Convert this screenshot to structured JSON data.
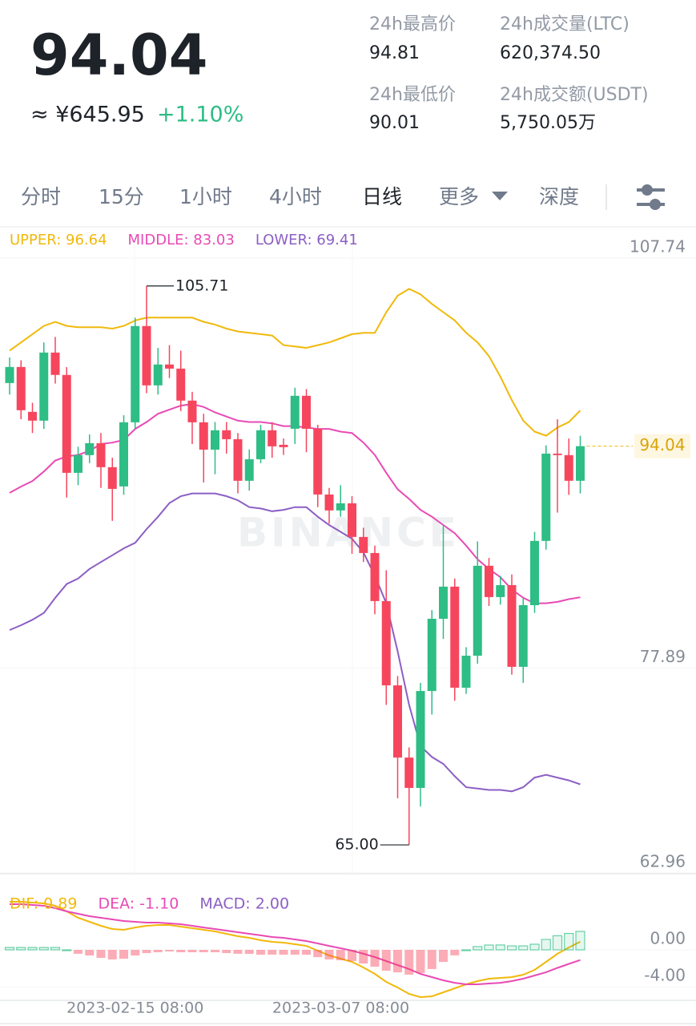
{
  "header": {
    "price": "94.04",
    "cny": "≈ ¥645.95",
    "change": "+1.10%",
    "stats": [
      {
        "label": "24h最高价",
        "value": "94.81"
      },
      {
        "label": "24h成交量(LTC)",
        "value": "620,374.50"
      },
      {
        "label": "24h最低价",
        "value": "90.01"
      },
      {
        "label": "24h成交额(USDT)",
        "value": "5,750.05万"
      }
    ]
  },
  "tabs": [
    "分时",
    "15分",
    "1小时",
    "4小时",
    "日线",
    "更多",
    "深度"
  ],
  "watermark": "BINANCE",
  "chart_data": [
    {
      "type": "candlestick",
      "up_color": "#2ebd85",
      "down_color": "#f6465d",
      "open": [
        98.64,
        99.81,
        96.54,
        95.9,
        100.86,
        99.23,
        92.1,
        93.39,
        94.26,
        92.51,
        91.11,
        95.78,
        102.79,
        98.47,
        99.99,
        99.69,
        97.36,
        95.78,
        93.79,
        95.2,
        94.55,
        91.52,
        93.09,
        95.2,
        94.14,
        95.31,
        97.71,
        95.31,
        90.52,
        89.36,
        89.88,
        87.43,
        86.26,
        82.76,
        76.62,
        71.36,
        69.15,
        76.21,
        81.47,
        83.81,
        76.45,
        78.78,
        85.33,
        83.05,
        83.92,
        77.97,
        82.46,
        87.14,
        93.5,
        93.39,
        91.52
      ],
      "high": [
        100.5,
        100.3,
        97.2,
        101.6,
        102.0,
        99.8,
        94.0,
        94.9,
        95.0,
        93.2,
        96.3,
        103.4,
        105.71,
        101.2,
        101.4,
        101.0,
        98.0,
        96.4,
        95.8,
        95.8,
        95.0,
        93.8,
        95.6,
        95.8,
        94.6,
        98.3,
        98.2,
        95.6,
        91.0,
        91.2,
        90.4,
        88.1,
        86.8,
        85.0,
        77.3,
        72.1,
        76.8,
        82.1,
        88.3,
        84.4,
        79.4,
        87.1,
        85.9,
        84.6,
        84.7,
        83.0,
        87.8,
        94.1,
        96.0,
        94.6,
        94.8
      ],
      "low": [
        97.8,
        96.0,
        95.0,
        95.3,
        98.6,
        90.3,
        91.2,
        92.8,
        91.0,
        88.6,
        90.5,
        95.3,
        97.9,
        97.8,
        99.0,
        96.6,
        94.2,
        91.4,
        92.0,
        93.5,
        90.6,
        90.8,
        92.8,
        93.2,
        93.4,
        94.2,
        93.6,
        89.6,
        88.4,
        88.9,
        86.2,
        85.6,
        81.8,
        75.2,
        68.4,
        65.0,
        67.8,
        74.5,
        80.0,
        75.5,
        76.0,
        78.2,
        82.4,
        82.5,
        77.4,
        76.8,
        81.9,
        86.5,
        89.2,
        90.5,
        90.6
      ],
      "close": [
        99.81,
        96.66,
        95.9,
        100.86,
        99.23,
        92.1,
        93.39,
        94.26,
        92.51,
        90.93,
        95.78,
        102.79,
        98.47,
        99.99,
        99.69,
        97.36,
        95.78,
        93.79,
        95.2,
        94.55,
        91.52,
        93.09,
        95.2,
        94.03,
        93.97,
        97.71,
        95.31,
        90.52,
        89.36,
        89.88,
        87.43,
        86.26,
        82.76,
        76.62,
        71.36,
        69.15,
        76.21,
        81.47,
        83.81,
        76.45,
        78.78,
        85.33,
        83.05,
        83.92,
        77.97,
        82.46,
        87.14,
        93.5,
        93.39,
        91.52,
        94.04
      ],
      "series": [
        {
          "name": "UPPER: 96.64",
          "color": "#f0b90b",
          "values": [
            101.0,
            101.6,
            102.2,
            102.8,
            103.1,
            102.8,
            102.7,
            102.7,
            102.7,
            102.6,
            102.8,
            103.2,
            103.4,
            103.4,
            103.4,
            103.4,
            103.4,
            103.1,
            102.9,
            102.6,
            102.4,
            102.3,
            102.2,
            102.1,
            101.4,
            101.3,
            101.2,
            101.4,
            101.6,
            101.9,
            102.2,
            102.3,
            102.3,
            103.8,
            105.0,
            105.5,
            105.1,
            104.4,
            103.8,
            103.2,
            102.3,
            101.6,
            100.6,
            99.1,
            97.4,
            95.9,
            95.1,
            94.8,
            95.4,
            95.8,
            96.64
          ]
        },
        {
          "name": "MIDDLE: 83.03",
          "color": "#e84ab5",
          "values": [
            90.64,
            91.1,
            91.5,
            92.2,
            93.0,
            93.3,
            93.4,
            93.7,
            94.2,
            94.3,
            94.5,
            95.3,
            95.8,
            96.4,
            96.7,
            97.0,
            97.1,
            96.9,
            96.5,
            96.2,
            95.9,
            95.8,
            95.8,
            95.7,
            95.5,
            95.5,
            95.4,
            95.3,
            95.3,
            95.1,
            95.0,
            94.3,
            93.4,
            92.1,
            90.9,
            90.2,
            89.4,
            88.9,
            88.3,
            87.7,
            86.8,
            85.8,
            85.1,
            84.5,
            83.6,
            83.0,
            82.6,
            82.6,
            82.7,
            82.9,
            83.03
          ]
        },
        {
          "name": "LOWER: 69.41",
          "color": "#8c5fc4",
          "values": [
            80.65,
            81.0,
            81.4,
            81.9,
            83.0,
            84.0,
            84.4,
            85.1,
            85.6,
            86.1,
            86.6,
            87.0,
            88.0,
            88.9,
            89.9,
            90.4,
            90.6,
            90.6,
            90.6,
            90.4,
            90.1,
            89.6,
            89.5,
            89.3,
            89.4,
            89.6,
            89.6,
            88.9,
            88.3,
            87.8,
            87.3,
            86.3,
            84.6,
            82.6,
            79.1,
            75.2,
            72.2,
            71.4,
            70.9,
            70.0,
            69.2,
            69.1,
            69.0,
            69.0,
            68.9,
            69.2,
            69.9,
            70.1,
            69.9,
            69.7,
            69.41
          ]
        }
      ],
      "annotations": [
        {
          "value": 105.71,
          "label": "105.71"
        },
        {
          "value": 65.0,
          "label": "65.00"
        }
      ],
      "last_price": {
        "value": 94.04,
        "label": "94.04"
      },
      "ylim": [
        62.96,
        107.74
      ],
      "yticks": [
        107.74,
        77.89,
        62.96
      ]
    },
    {
      "type": "macd",
      "categories": [
        null,
        null,
        null,
        null,
        null,
        null,
        null,
        null,
        null,
        null,
        null,
        "2023-02-15 08:00",
        null,
        null,
        null,
        null,
        null,
        null,
        null,
        null,
        null,
        null,
        null,
        null,
        null,
        null,
        null,
        null,
        null,
        null,
        "2023-03-07 08:00",
        null,
        null,
        null,
        null,
        null,
        null,
        null,
        null,
        null,
        null,
        null,
        null,
        null,
        null,
        null,
        null,
        null,
        null,
        null,
        null
      ],
      "series": [
        {
          "name": "DIF: 0.89",
          "color": "#f0b90b",
          "values": [
            5.22,
            5.22,
            5.13,
            5.04,
            4.78,
            4.17,
            3.48,
            3.04,
            2.61,
            2.26,
            2.17,
            2.43,
            2.61,
            2.7,
            2.7,
            2.52,
            2.35,
            2.17,
            2.0,
            1.74,
            1.48,
            1.3,
            1.04,
            0.87,
            0.78,
            0.61,
            0.43,
            -0.09,
            -0.61,
            -0.96,
            -1.3,
            -1.91,
            -2.61,
            -3.48,
            -4.09,
            -4.78,
            -5.13,
            -5.04,
            -4.61,
            -4.17,
            -3.74,
            -3.39,
            -3.13,
            -3.04,
            -2.96,
            -2.7,
            -2.17,
            -1.3,
            -0.43,
            0.26,
            0.89
          ]
        },
        {
          "name": "DEA: -1.10",
          "color": "#e84ab5",
          "values": [
            4.96,
            4.96,
            4.87,
            4.78,
            4.52,
            4.17,
            3.91,
            3.65,
            3.48,
            3.3,
            3.13,
            3.04,
            2.96,
            2.96,
            2.87,
            2.78,
            2.61,
            2.43,
            2.26,
            2.09,
            1.91,
            1.74,
            1.57,
            1.39,
            1.3,
            1.13,
            0.96,
            0.7,
            0.43,
            0.17,
            -0.09,
            -0.43,
            -0.78,
            -1.22,
            -1.65,
            -2.09,
            -2.61,
            -2.96,
            -3.3,
            -3.57,
            -3.74,
            -3.74,
            -3.65,
            -3.57,
            -3.39,
            -3.13,
            -2.78,
            -2.43,
            -1.96,
            -1.52,
            -1.1
          ]
        },
        {
          "name": "MACD: 2.00",
          "color": "#8c5fc4",
          "bar": true,
          "up_color": "#2ebd85",
          "down_color": "#f6465d",
          "values": [
            0.26,
            0.26,
            0.26,
            0.26,
            0.26,
            0.0,
            -0.43,
            -0.61,
            -0.87,
            -1.04,
            -0.96,
            -0.61,
            -0.35,
            -0.26,
            -0.17,
            -0.26,
            -0.26,
            -0.26,
            -0.26,
            -0.35,
            -0.43,
            -0.44,
            -0.53,
            -0.52,
            -0.52,
            -0.52,
            -0.53,
            -0.79,
            -1.04,
            -1.13,
            -1.21,
            -1.48,
            -1.83,
            -2.26,
            -2.44,
            -2.69,
            -2.52,
            -2.08,
            -1.31,
            -0.6,
            0.0,
            0.35,
            0.52,
            0.53,
            0.43,
            0.43,
            0.61,
            1.13,
            1.53,
            1.78,
            2.0
          ]
        }
      ],
      "ylim": [
        -5.5,
        6.5
      ],
      "yticks": [
        {
          "value": 0,
          "label": "0.00"
        },
        {
          "value": -4,
          "label": "-4.00"
        }
      ]
    }
  ]
}
